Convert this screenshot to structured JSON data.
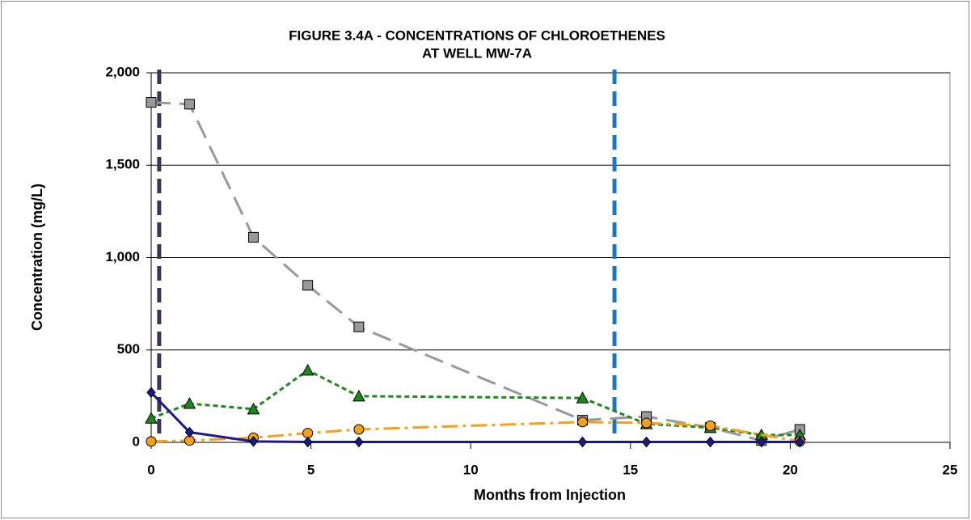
{
  "chart_data": {
    "type": "line",
    "title": [
      "FIGURE 3.4A - CONCENTRATIONS OF CHLOROETHENES",
      "AT WELL MW-7A"
    ],
    "xlabel": "Months from Injection",
    "ylabel": "Concentration (mg/L)",
    "xlim": [
      0,
      25
    ],
    "xticks": [
      0,
      5,
      10,
      15,
      20,
      25
    ],
    "ylim": [
      0,
      2000
    ],
    "yticks": [
      0,
      500,
      {
        "value": 1000,
        "label": "1,000"
      },
      {
        "value": 1500,
        "label": "1,500"
      },
      {
        "value": 2000,
        "label": "2,000"
      }
    ],
    "grid": true,
    "vlines": [
      {
        "x": 0.25,
        "color": "#3f3355"
      },
      {
        "x": 14.5,
        "color": "#1a78c2"
      }
    ],
    "series": [
      {
        "color": "#999999",
        "marker": "square",
        "dash": "24,11",
        "x": [
          0,
          1.2,
          3.2,
          4.9,
          6.5,
          13.5,
          15.5,
          17.5,
          19.1,
          20.3
        ],
        "values": [
          1840,
          1830,
          1110,
          850,
          625,
          120,
          140,
          80,
          10,
          70
        ]
      },
      {
        "color": "#1a8a1a",
        "marker": "triangle",
        "dash": "6,4",
        "x": [
          0,
          1.2,
          3.2,
          4.9,
          6.5,
          13.5,
          15.5,
          17.5,
          19.1,
          20.3
        ],
        "values": [
          130,
          210,
          180,
          390,
          250,
          240,
          100,
          80,
          40,
          40
        ]
      },
      {
        "color": "#f5a01a",
        "marker": "circle",
        "dash": "20,6,4,6",
        "x": [
          0,
          1.2,
          3.2,
          4.9,
          6.5,
          13.5,
          15.5,
          17.5,
          20.3
        ],
        "values": [
          5,
          10,
          25,
          50,
          70,
          110,
          105,
          90,
          5
        ]
      },
      {
        "color": "#1a1a8c",
        "marker": "diamond",
        "dash": "",
        "x": [
          0,
          1.2,
          3.2,
          4.9,
          6.5,
          13.5,
          15.5,
          17.5,
          19.1,
          20.3
        ],
        "values": [
          270,
          55,
          5,
          2,
          2,
          2,
          2,
          2,
          2,
          2
        ]
      }
    ]
  }
}
